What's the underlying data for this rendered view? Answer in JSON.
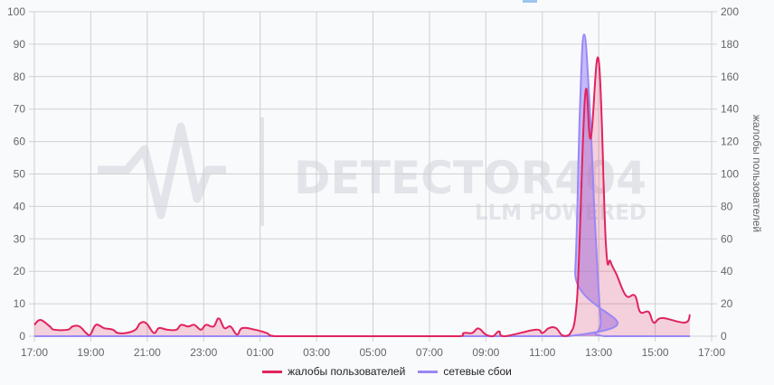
{
  "chart_data": {
    "type": "area",
    "title": "",
    "xlabel": "",
    "ylabel_left": "",
    "ylabel_right": "жалобы пользователей",
    "ylim_left": [
      0,
      100
    ],
    "ylim_right": [
      0,
      200
    ],
    "yticks_left": [
      "0",
      "10",
      "20",
      "30",
      "40",
      "50",
      "60",
      "70",
      "80",
      "90",
      "100"
    ],
    "yticks_right": [
      "0",
      "20",
      "40",
      "60",
      "80",
      "100",
      "120",
      "140",
      "160",
      "180",
      "200"
    ],
    "xticks": [
      "17:00",
      "19:00",
      "21:00",
      "23:00",
      "01:00",
      "03:00",
      "05:00",
      "07:00",
      "09:00",
      "11:00",
      "13:00",
      "15:00",
      "17:00"
    ],
    "grid": true,
    "legend": "bottom",
    "series": [
      {
        "name": "жалобы пользователей",
        "color": "#e0245e",
        "points": [
          [
            "17:00",
            3.5
          ],
          [
            "17:13",
            5
          ],
          [
            "17:33",
            3
          ],
          [
            "17:42",
            2
          ],
          [
            "18:11",
            2
          ],
          [
            "18:21",
            3
          ],
          [
            "18:36",
            3
          ],
          [
            "18:50",
            1
          ],
          [
            "18:59",
            0.5
          ],
          [
            "19:11",
            3.5
          ],
          [
            "19:28",
            2.5
          ],
          [
            "19:47",
            2
          ],
          [
            "19:57",
            1
          ],
          [
            "20:16",
            1
          ],
          [
            "20:35",
            2
          ],
          [
            "20:45",
            4
          ],
          [
            "20:58",
            4
          ],
          [
            "21:14",
            1
          ],
          [
            "21:25",
            2.5
          ],
          [
            "21:43",
            2
          ],
          [
            "22:02",
            2
          ],
          [
            "22:12",
            3.5
          ],
          [
            "22:27",
            3
          ],
          [
            "22:40",
            3.5
          ],
          [
            "22:54",
            2
          ],
          [
            "23:05",
            3.5
          ],
          [
            "23:21",
            3
          ],
          [
            "23:32",
            5.5
          ],
          [
            "23:44",
            2.5
          ],
          [
            "23:57",
            3
          ],
          [
            "00:11",
            0.5
          ],
          [
            "00:22",
            2.5
          ],
          [
            "00:49",
            2
          ],
          [
            "01:14",
            1
          ],
          [
            "01:33",
            0
          ],
          [
            "03:00",
            0
          ],
          [
            "05:00",
            0
          ],
          [
            "07:00",
            0
          ],
          [
            "08:04",
            0
          ],
          [
            "08:13",
            1
          ],
          [
            "08:31",
            1
          ],
          [
            "08:44",
            2.4
          ],
          [
            "09:00",
            0.5
          ],
          [
            "09:15",
            0
          ],
          [
            "09:28",
            1.5
          ],
          [
            "09:40",
            0
          ],
          [
            "10:45",
            2
          ],
          [
            "11:00",
            1
          ],
          [
            "11:14",
            2.5
          ],
          [
            "11:29",
            2.5
          ],
          [
            "11:43",
            0.2
          ],
          [
            "11:58",
            0.5
          ],
          [
            "12:14",
            11.7
          ],
          [
            "12:31",
            74
          ],
          [
            "12:43",
            61
          ],
          [
            "13:00",
            85
          ],
          [
            "13:15",
            29
          ],
          [
            "13:25",
            23
          ],
          [
            "13:38",
            19
          ],
          [
            "13:58",
            12.5
          ],
          [
            "14:17",
            12.5
          ],
          [
            "14:28",
            7.5
          ],
          [
            "14:46",
            7.5
          ],
          [
            "14:57",
            4.2
          ],
          [
            "15:15",
            5.6
          ],
          [
            "16:03",
            4.2
          ],
          [
            "16:14",
            6.7
          ]
        ]
      },
      {
        "name": "сетевые сбои",
        "color": "#9b87f5",
        "points": [
          [
            "17:00",
            0
          ],
          [
            "11:55",
            0
          ],
          [
            "12:10",
            20
          ],
          [
            "12:20",
            70
          ],
          [
            "12:29",
            93
          ],
          [
            "12:41",
            70
          ],
          [
            "12:52",
            35
          ],
          [
            "13:04",
            5
          ],
          [
            "13:11",
            0
          ],
          [
            "16:14",
            0
          ]
        ]
      }
    ]
  },
  "watermark": {
    "brand": "DETECTOR404",
    "tagline": "LLM POWERED"
  }
}
